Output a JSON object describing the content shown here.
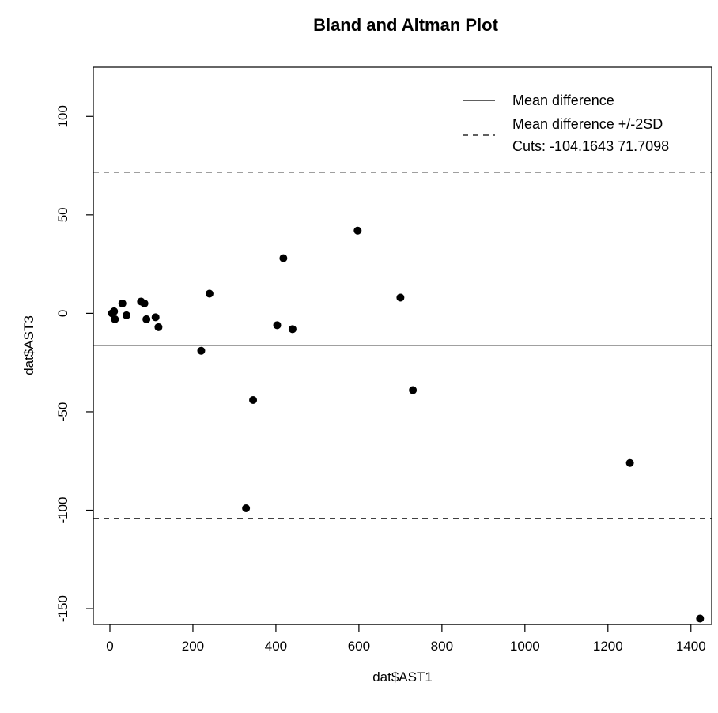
{
  "chart_data": {
    "type": "scatter",
    "title": "Bland and Altman Plot",
    "xlabel": "dat$AST1",
    "ylabel": "dat$AST3",
    "xlim": [
      -40,
      1450
    ],
    "ylim": [
      -158,
      125
    ],
    "xticks": [
      0,
      200,
      400,
      600,
      800,
      1000,
      1200,
      1400
    ],
    "yticks": [
      -150,
      -100,
      -50,
      0,
      50,
      100
    ],
    "xtick_labels": [
      "0",
      "200",
      "400",
      "600",
      "800",
      "1000",
      "1200",
      "1400"
    ],
    "ytick_labels": [
      "-150",
      "-100",
      "-50",
      "0",
      "50",
      "100"
    ],
    "grid": false,
    "point_color": "#000000",
    "points": [
      {
        "x": 5,
        "y": 0
      },
      {
        "x": 10,
        "y": 1
      },
      {
        "x": 12,
        "y": -3
      },
      {
        "x": 30,
        "y": 5
      },
      {
        "x": 40,
        "y": -1
      },
      {
        "x": 75,
        "y": 6
      },
      {
        "x": 83,
        "y": 5
      },
      {
        "x": 88,
        "y": -3
      },
      {
        "x": 110,
        "y": -2
      },
      {
        "x": 117,
        "y": -7
      },
      {
        "x": 220,
        "y": -19
      },
      {
        "x": 240,
        "y": 10
      },
      {
        "x": 328,
        "y": -99
      },
      {
        "x": 345,
        "y": -44
      },
      {
        "x": 403,
        "y": -6
      },
      {
        "x": 418,
        "y": 28
      },
      {
        "x": 440,
        "y": -8
      },
      {
        "x": 597,
        "y": 42
      },
      {
        "x": 700,
        "y": 8
      },
      {
        "x": 730,
        "y": -39
      },
      {
        "x": 1253,
        "y": -76
      },
      {
        "x": 1422,
        "y": -155
      }
    ],
    "reference_lines": {
      "mean_difference": -16.2273,
      "upper_limit": 71.7098,
      "lower_limit": -104.1643
    },
    "legend": {
      "position": "top-right",
      "entries": [
        {
          "label": "Mean difference",
          "style": "solid"
        },
        {
          "label": "Mean difference +/-2SD",
          "style": "dashed"
        }
      ],
      "extra_text": "Cuts: -104.1643 71.7098"
    }
  }
}
